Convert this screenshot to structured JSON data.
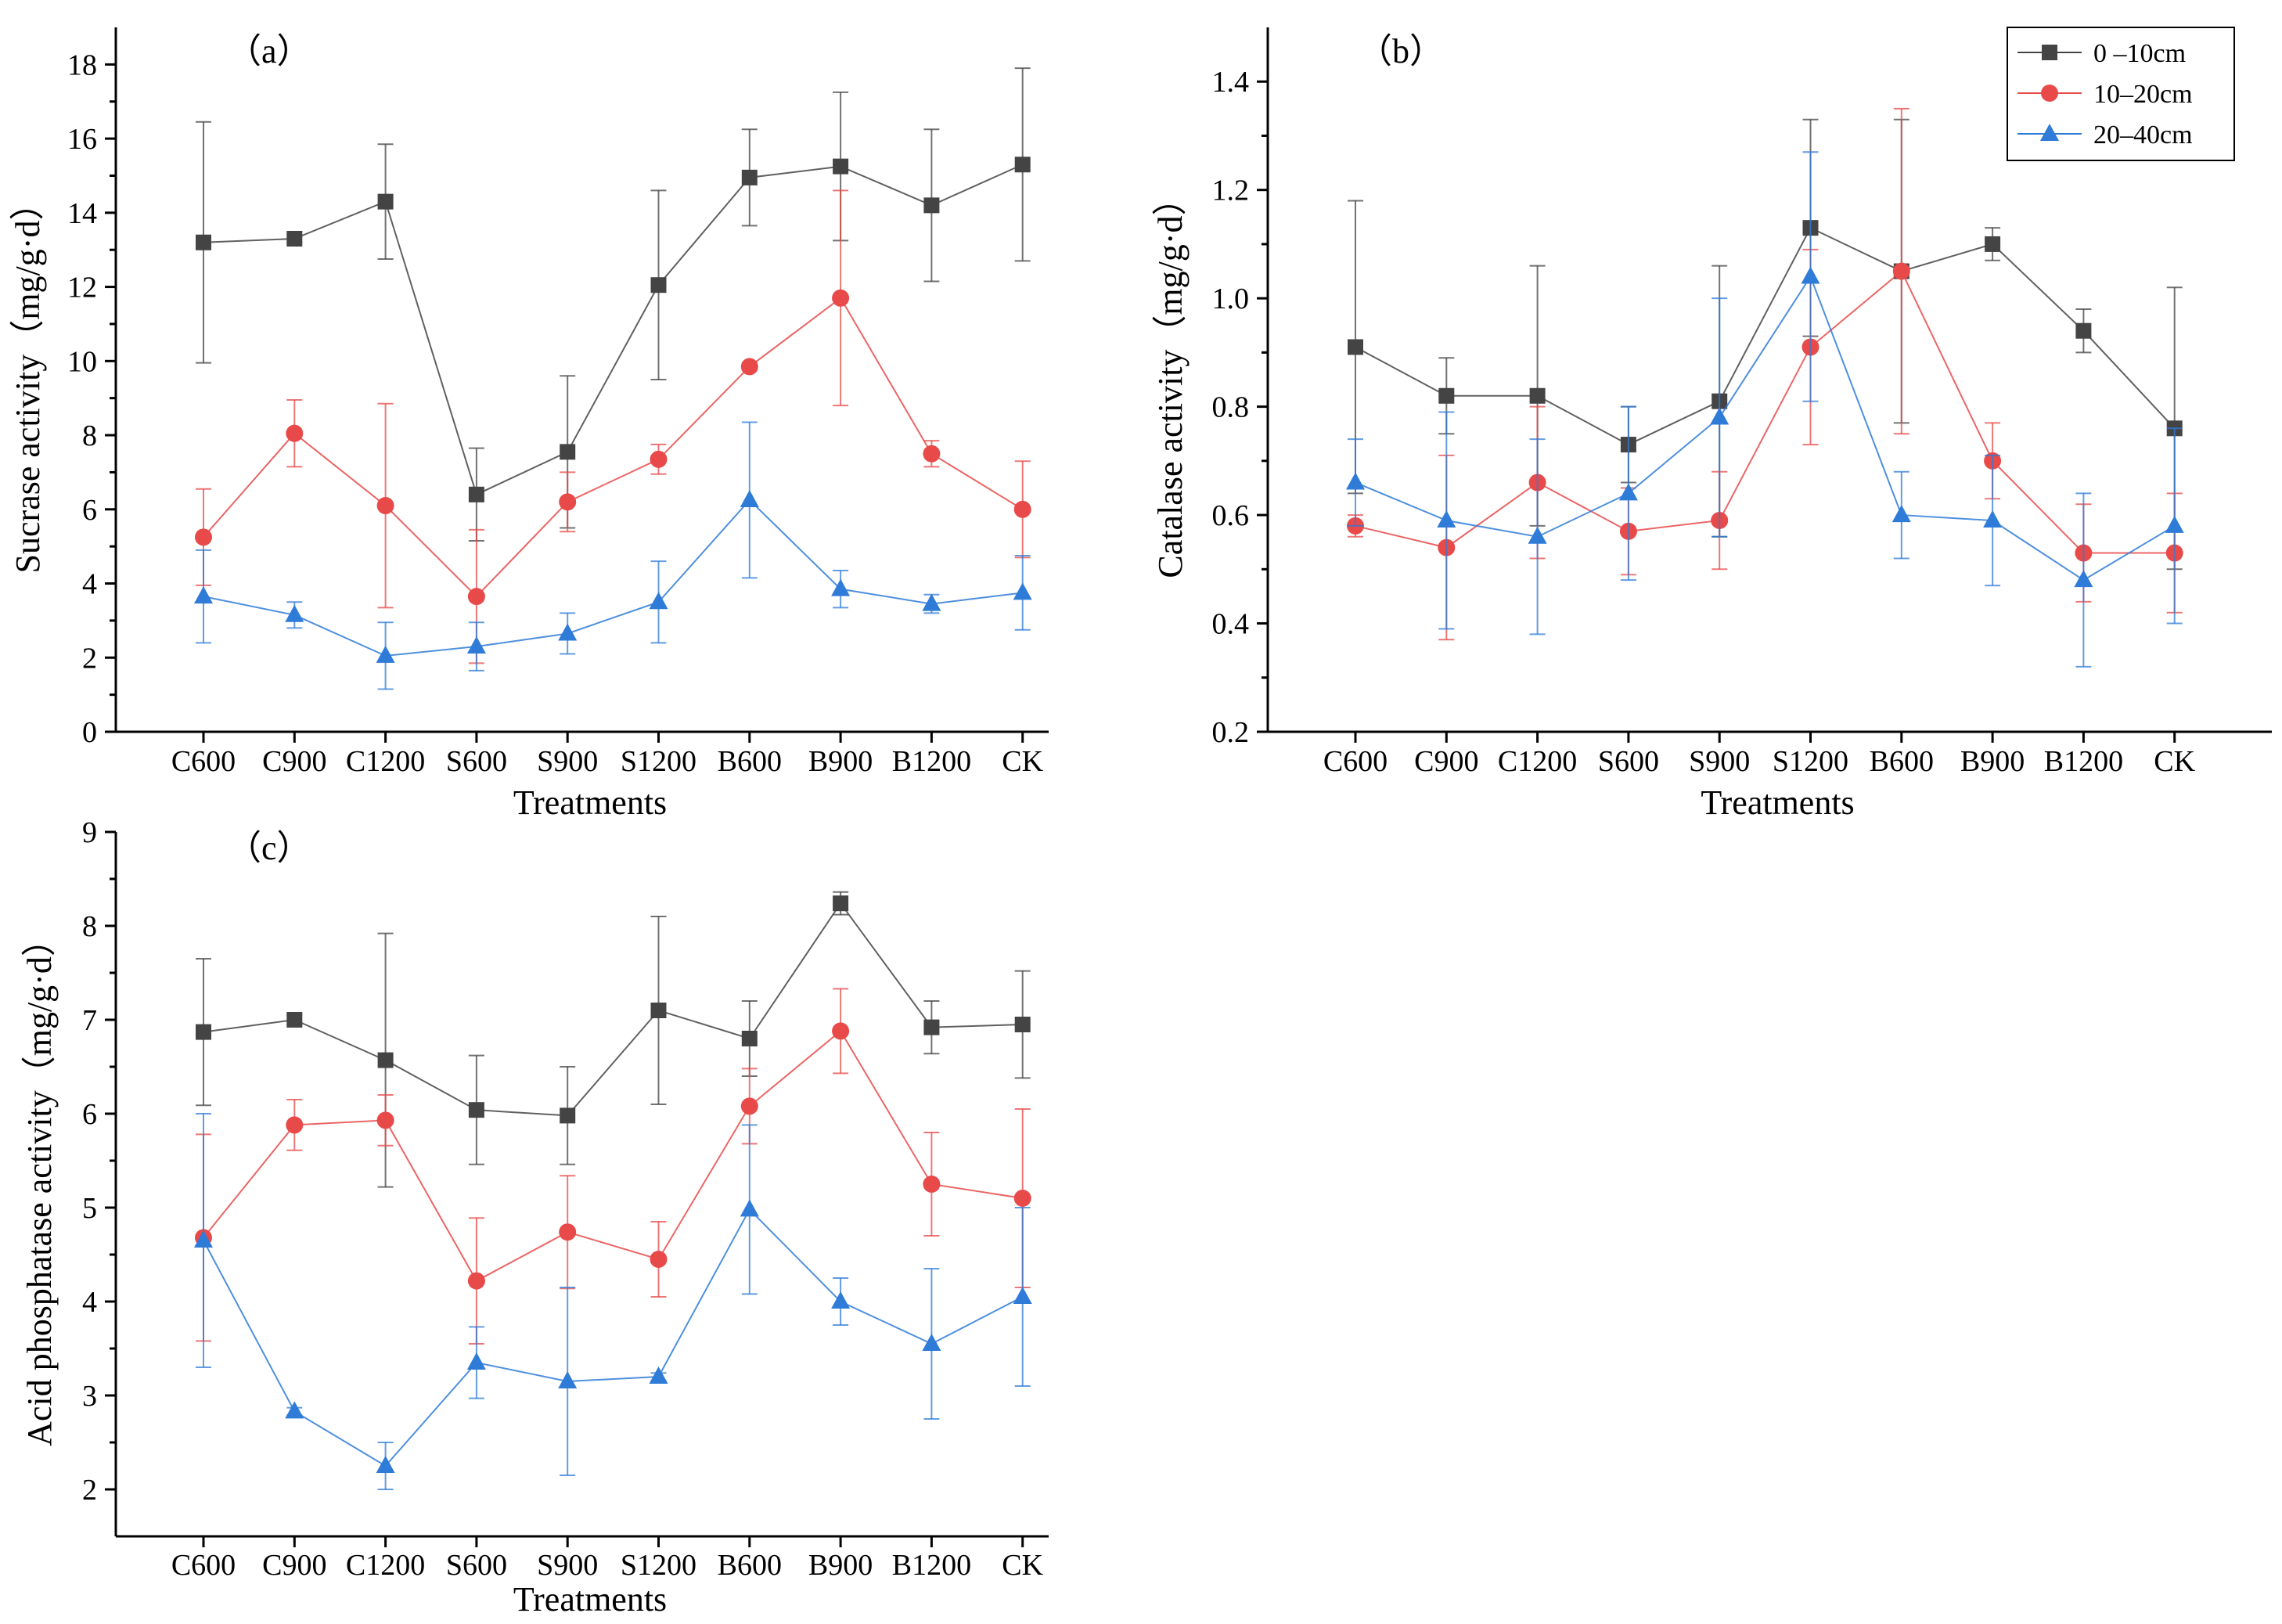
{
  "chart_data": [
    {
      "type": "line",
      "panel_label": "（a）",
      "title": "",
      "xlabel": "Treatments",
      "ylabel": "Sucrase activity（mg/g·d）",
      "categories": [
        "C600",
        "C900",
        "C1200",
        "S600",
        "S900",
        "S1200",
        "B600",
        "B900",
        "B1200",
        "CK"
      ],
      "ylim": [
        0,
        19
      ],
      "yticks": [
        0,
        2,
        4,
        6,
        8,
        10,
        12,
        14,
        16,
        18
      ],
      "tick_decimals": 0,
      "series": [
        {
          "name": "0 –10cm",
          "color": "#444444",
          "marker": "square",
          "values": [
            13.2,
            13.3,
            14.3,
            6.4,
            7.55,
            12.05,
            14.95,
            15.25,
            14.2,
            15.3
          ],
          "errors": [
            3.25,
            0.1,
            1.55,
            1.25,
            2.05,
            2.55,
            1.3,
            2.0,
            2.05,
            2.6
          ]
        },
        {
          "name": "10–20cm",
          "color": "#e84a4a",
          "marker": "circle",
          "values": [
            5.25,
            8.05,
            6.1,
            3.65,
            6.2,
            7.35,
            9.85,
            11.7,
            7.5,
            6.0
          ],
          "errors": [
            1.3,
            0.9,
            2.75,
            1.8,
            0.8,
            0.4,
            0.1,
            2.9,
            0.35,
            1.3
          ]
        },
        {
          "name": "20–40cm",
          "color": "#2f7bd8",
          "marker": "triangle",
          "values": [
            3.65,
            3.15,
            2.05,
            2.3,
            2.65,
            3.5,
            6.25,
            3.85,
            3.45,
            3.75
          ],
          "errors": [
            1.25,
            0.35,
            0.9,
            0.65,
            0.55,
            1.1,
            2.1,
            0.5,
            0.25,
            1.0
          ]
        }
      ]
    },
    {
      "type": "line",
      "panel_label": "（b）",
      "title": "",
      "xlabel": "Treatments",
      "ylabel": "Catalase activity（mg/g·d）",
      "categories": [
        "C600",
        "C900",
        "C1200",
        "S600",
        "S900",
        "S1200",
        "B600",
        "B900",
        "B1200",
        "CK"
      ],
      "ylim": [
        0.2,
        1.5
      ],
      "yticks": [
        0.2,
        0.4,
        0.6,
        0.8,
        1.0,
        1.2,
        1.4
      ],
      "tick_decimals": 1,
      "legend": "top-right",
      "series": [
        {
          "name": "0 –10cm",
          "color": "#444444",
          "marker": "square",
          "values": [
            0.91,
            0.82,
            0.82,
            0.73,
            0.81,
            1.13,
            1.05,
            1.1,
            0.94,
            0.76
          ],
          "errors": [
            0.27,
            0.07,
            0.24,
            0.07,
            0.25,
            0.2,
            0.28,
            0.03,
            0.04,
            0.26
          ]
        },
        {
          "name": "10–20cm",
          "color": "#e84a4a",
          "marker": "circle",
          "values": [
            0.58,
            0.54,
            0.66,
            0.57,
            0.59,
            0.91,
            1.05,
            0.7,
            0.53,
            0.53
          ],
          "errors": [
            0.02,
            0.17,
            0.14,
            0.08,
            0.09,
            0.18,
            0.3,
            0.07,
            0.09,
            0.11
          ]
        },
        {
          "name": "20–40cm",
          "color": "#2f7bd8",
          "marker": "triangle",
          "values": [
            0.66,
            0.59,
            0.56,
            0.64,
            0.78,
            1.04,
            0.6,
            0.59,
            0.48,
            0.58
          ],
          "errors": [
            0.08,
            0.2,
            0.18,
            0.16,
            0.22,
            0.23,
            0.08,
            0.12,
            0.16,
            0.18
          ]
        }
      ]
    },
    {
      "type": "line",
      "panel_label": "（c）",
      "title": "",
      "xlabel": "Treatments",
      "ylabel": "Acid phosphatase activity（mg/g·d）",
      "categories": [
        "C600",
        "C900",
        "C1200",
        "S600",
        "S900",
        "S1200",
        "B600",
        "B900",
        "B1200",
        "CK"
      ],
      "ylim": [
        1.5,
        9
      ],
      "yticks": [
        2,
        3,
        4,
        5,
        6,
        7,
        8,
        9
      ],
      "tick_decimals": 0,
      "series": [
        {
          "name": "0 –10cm",
          "color": "#444444",
          "marker": "square",
          "values": [
            6.87,
            7.0,
            6.57,
            6.04,
            5.98,
            7.1,
            6.8,
            8.24,
            6.92,
            6.95
          ],
          "errors": [
            0.78,
            0.05,
            1.35,
            0.58,
            0.52,
            1.0,
            0.4,
            0.12,
            0.28,
            0.57
          ]
        },
        {
          "name": "10–20cm",
          "color": "#e84a4a",
          "marker": "circle",
          "values": [
            4.68,
            5.88,
            5.93,
            4.22,
            4.74,
            4.45,
            6.08,
            6.88,
            5.25,
            5.1
          ],
          "errors": [
            1.1,
            0.27,
            0.27,
            0.67,
            0.6,
            0.4,
            0.4,
            0.45,
            0.55,
            0.95
          ]
        },
        {
          "name": "20–40cm",
          "color": "#2f7bd8",
          "marker": "triangle",
          "values": [
            4.65,
            2.83,
            2.25,
            3.35,
            3.15,
            3.2,
            4.98,
            4.0,
            3.55,
            4.05
          ],
          "errors": [
            1.35,
            0.04,
            0.25,
            0.38,
            1.0,
            0.04,
            0.9,
            0.25,
            0.8,
            0.95
          ]
        }
      ]
    }
  ]
}
